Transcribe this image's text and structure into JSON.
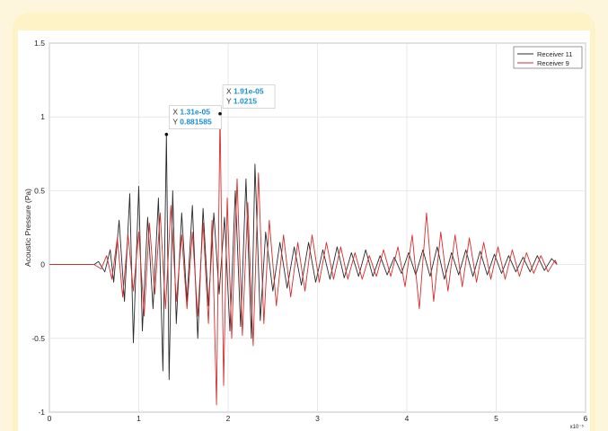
{
  "chart_data": {
    "type": "line",
    "title": "",
    "xlabel": "",
    "ylabel": "Acoustic Pressure (Pa)",
    "xlim": [
      0,
      6
    ],
    "ylim": [
      -1,
      1.5
    ],
    "x_ticks": [
      "0",
      "1",
      "2",
      "3",
      "4",
      "5",
      "6"
    ],
    "y_ticks": [
      "-1",
      "-0.5",
      "0",
      "0.5",
      "1",
      "1.5"
    ],
    "grid": true,
    "legend_position": "top-right",
    "x_scale_exponent_label": "x10⁻⁵",
    "series": [
      {
        "name": "Receiver 11",
        "color": "#2b2b2b",
        "x": [
          0,
          0.5,
          0.55,
          0.62,
          0.68,
          0.72,
          0.78,
          0.84,
          0.9,
          0.94,
          1.0,
          1.04,
          1.1,
          1.16,
          1.22,
          1.27,
          1.31,
          1.34,
          1.38,
          1.42,
          1.48,
          1.54,
          1.6,
          1.66,
          1.72,
          1.78,
          1.84,
          1.9,
          1.96,
          2.02,
          2.08,
          2.14,
          2.2,
          2.26,
          2.3,
          2.36,
          2.42,
          2.5,
          2.58,
          2.66,
          2.74,
          2.82,
          2.9,
          2.98,
          3.06,
          3.14,
          3.22,
          3.3,
          3.38,
          3.46,
          3.54,
          3.62,
          3.7,
          3.78,
          3.86,
          3.94,
          4.02,
          4.1,
          4.18,
          4.26,
          4.34,
          4.42,
          4.5,
          4.58,
          4.66,
          4.74,
          4.82,
          4.9,
          4.98,
          5.06,
          5.14,
          5.22,
          5.3,
          5.38,
          5.46,
          5.54,
          5.62,
          5.68
        ],
        "y": [
          0,
          0,
          0.02,
          -0.05,
          0.1,
          -0.12,
          0.3,
          -0.25,
          0.48,
          -0.53,
          0.53,
          -0.45,
          0.32,
          -0.3,
          0.45,
          -0.72,
          0.88,
          -0.78,
          0.5,
          -0.4,
          0.35,
          -0.25,
          0.4,
          -0.5,
          0.38,
          -0.28,
          0.35,
          -0.2,
          0.32,
          -0.45,
          0.5,
          -0.42,
          0.58,
          -0.5,
          0.68,
          -0.38,
          0.22,
          -0.18,
          0.15,
          -0.16,
          0.12,
          -0.14,
          0.15,
          -0.12,
          0.1,
          -0.1,
          0.12,
          -0.09,
          0.08,
          -0.08,
          0.1,
          -0.08,
          0.06,
          -0.07,
          0.05,
          -0.06,
          0.08,
          -0.07,
          0.1,
          -0.08,
          0.12,
          -0.1,
          0.08,
          -0.07,
          0.1,
          -0.08,
          0.09,
          -0.07,
          0.07,
          -0.06,
          0.06,
          -0.05,
          0.05,
          -0.05,
          0.06,
          -0.04,
          0.04,
          0
        ]
      },
      {
        "name": "Receiver 9",
        "color": "#d62d2d",
        "x": [
          0,
          0.5,
          0.58,
          0.64,
          0.7,
          0.76,
          0.82,
          0.88,
          0.94,
          1.0,
          1.06,
          1.12,
          1.18,
          1.24,
          1.3,
          1.36,
          1.42,
          1.48,
          1.54,
          1.6,
          1.66,
          1.72,
          1.78,
          1.82,
          1.87,
          1.91,
          1.95,
          1.99,
          2.04,
          2.1,
          2.16,
          2.22,
          2.28,
          2.34,
          2.4,
          2.46,
          2.54,
          2.62,
          2.7,
          2.78,
          2.86,
          2.94,
          3.02,
          3.1,
          3.18,
          3.26,
          3.34,
          3.42,
          3.5,
          3.58,
          3.66,
          3.74,
          3.82,
          3.9,
          3.98,
          4.06,
          4.14,
          4.22,
          4.3,
          4.38,
          4.46,
          4.54,
          4.62,
          4.7,
          4.78,
          4.86,
          4.94,
          5.02,
          5.1,
          5.18,
          5.26,
          5.34,
          5.42,
          5.5,
          5.58,
          5.66,
          5.68
        ],
        "y": [
          0,
          0,
          -0.03,
          0.06,
          -0.1,
          0.18,
          -0.22,
          0.2,
          -0.18,
          0.22,
          -0.35,
          0.28,
          -0.2,
          0.35,
          -0.3,
          0.4,
          -0.25,
          0.2,
          -0.3,
          0.22,
          -0.35,
          0.28,
          -0.4,
          0.3,
          -0.95,
          1.02,
          -0.82,
          0.45,
          -0.5,
          0.58,
          -0.48,
          0.42,
          -0.55,
          0.62,
          -0.4,
          0.3,
          -0.28,
          0.2,
          -0.22,
          0.15,
          -0.18,
          0.2,
          -0.12,
          0.15,
          -0.1,
          0.12,
          -0.1,
          0.08,
          -0.1,
          0.06,
          -0.08,
          0.1,
          -0.08,
          0.12,
          -0.15,
          0.2,
          -0.3,
          0.35,
          -0.25,
          0.22,
          -0.18,
          0.2,
          -0.15,
          0.18,
          -0.12,
          0.15,
          -0.1,
          0.12,
          -0.1,
          0.1,
          -0.08,
          0.08,
          -0.06,
          0.06,
          -0.05,
          0.03,
          0
        ]
      }
    ],
    "datatips": [
      {
        "x_label": "X",
        "x_value": "1.31e-05",
        "y_label": "Y",
        "y_value": "0.881585",
        "x": 1.31,
        "y": 0.881585
      },
      {
        "x_label": "X",
        "x_value": "1.91e-05",
        "y_label": "Y",
        "y_value": "1.0215",
        "x": 1.91,
        "y": 1.0215
      }
    ]
  }
}
